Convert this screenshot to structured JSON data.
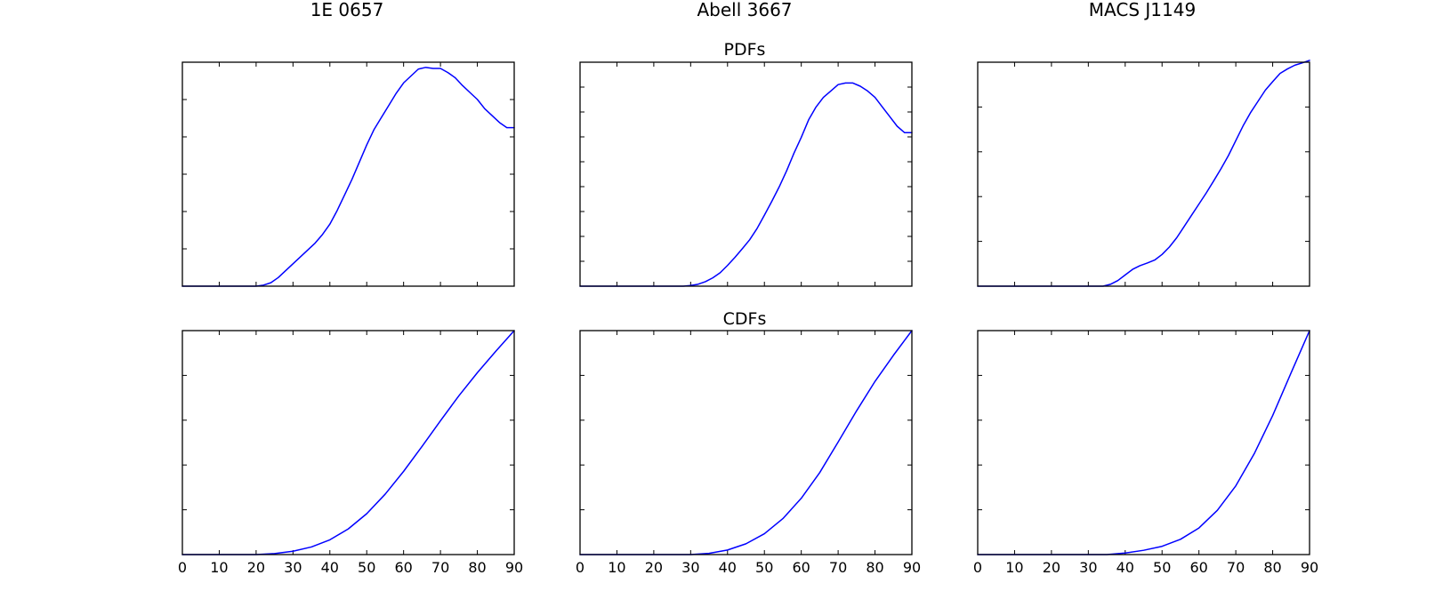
{
  "figure": {
    "column_titles": [
      "1E 0657",
      "Abell 3667",
      "MACS J1149"
    ],
    "row_titles": [
      "PDFs",
      "CDFs"
    ],
    "line_color": "#0000ff"
  },
  "chart_data": [
    {
      "type": "line",
      "row": "PDFs",
      "column": "1E 0657",
      "x": [
        0,
        20,
        22,
        24,
        26,
        28,
        30,
        32,
        34,
        36,
        38,
        40,
        42,
        44,
        46,
        48,
        50,
        52,
        54,
        56,
        58,
        60,
        62,
        64,
        66,
        68,
        70,
        72,
        74,
        76,
        78,
        80,
        82,
        84,
        86,
        88,
        90
      ],
      "values": [
        0,
        0,
        0.003,
        0.01,
        0.025,
        0.045,
        0.065,
        0.085,
        0.105,
        0.125,
        0.15,
        0.18,
        0.22,
        0.265,
        0.31,
        0.36,
        0.41,
        0.455,
        0.49,
        0.525,
        0.56,
        0.59,
        0.61,
        0.63,
        0.635,
        0.632,
        0.632,
        0.62,
        0.605,
        0.582,
        0.562,
        0.542,
        0.515,
        0.495,
        0.475,
        0.46,
        0.46
      ],
      "xlim": [
        0,
        90
      ],
      "ylim": [
        0,
        0.65
      ],
      "xticks": [
        0,
        10,
        20,
        30,
        40,
        50,
        60,
        70,
        80,
        90
      ],
      "yticks": 6,
      "show_xtick_labels": false
    },
    {
      "type": "line",
      "row": "PDFs",
      "column": "Abell 3667",
      "x": [
        0,
        28,
        30,
        32,
        34,
        36,
        38,
        40,
        42,
        44,
        46,
        48,
        50,
        52,
        54,
        56,
        58,
        60,
        62,
        64,
        66,
        68,
        70,
        72,
        74,
        76,
        78,
        80,
        82,
        84,
        86,
        88,
        90
      ],
      "values": [
        0,
        0,
        0.002,
        0.006,
        0.014,
        0.026,
        0.042,
        0.065,
        0.09,
        0.117,
        0.145,
        0.18,
        0.222,
        0.265,
        0.31,
        0.36,
        0.415,
        0.465,
        0.52,
        0.56,
        0.59,
        0.61,
        0.63,
        0.635,
        0.635,
        0.625,
        0.61,
        0.59,
        0.56,
        0.53,
        0.5,
        0.48,
        0.48
      ],
      "xlim": [
        0,
        90
      ],
      "ylim": [
        0,
        0.7
      ],
      "xticks": [
        0,
        10,
        20,
        30,
        40,
        50,
        60,
        70,
        80,
        90
      ],
      "yticks": 9,
      "show_xtick_labels": false
    },
    {
      "type": "line",
      "row": "PDFs",
      "column": "MACS J1149",
      "x": [
        0,
        34,
        36,
        38,
        40,
        42,
        44,
        46,
        48,
        50,
        52,
        54,
        56,
        58,
        60,
        62,
        64,
        66,
        68,
        70,
        72,
        74,
        76,
        78,
        80,
        82,
        84,
        86,
        88,
        90
      ],
      "values": [
        0,
        0,
        0.005,
        0.015,
        0.03,
        0.045,
        0.055,
        0.062,
        0.07,
        0.085,
        0.105,
        0.13,
        0.16,
        0.19,
        0.22,
        0.25,
        0.282,
        0.315,
        0.35,
        0.39,
        0.43,
        0.465,
        0.495,
        0.525,
        0.548,
        0.57,
        0.582,
        0.592,
        0.598,
        0.605
      ],
      "xlim": [
        0,
        90
      ],
      "ylim": [
        0,
        0.6
      ],
      "xticks": [
        0,
        10,
        20,
        30,
        40,
        50,
        60,
        70,
        80,
        90
      ],
      "yticks": 5,
      "show_xtick_labels": false
    },
    {
      "type": "line",
      "row": "CDFs",
      "column": "1E 0657",
      "x": [
        0,
        20,
        25,
        30,
        35,
        40,
        45,
        50,
        55,
        60,
        65,
        70,
        75,
        80,
        85,
        90
      ],
      "values": [
        0,
        0,
        0.004,
        0.014,
        0.032,
        0.062,
        0.108,
        0.172,
        0.254,
        0.35,
        0.455,
        0.563,
        0.668,
        0.765,
        0.855,
        0.942
      ],
      "xlim": [
        0,
        90
      ],
      "ylim": [
        0,
        0.942
      ],
      "xticks": [
        0,
        10,
        20,
        30,
        40,
        50,
        60,
        70,
        80,
        90
      ],
      "yticks": 5,
      "show_xtick_labels": true
    },
    {
      "type": "line",
      "row": "CDFs",
      "column": "Abell 3667",
      "x": [
        0,
        30,
        35,
        40,
        45,
        50,
        55,
        60,
        65,
        70,
        75,
        80,
        85,
        90
      ],
      "values": [
        0,
        0,
        0.005,
        0.019,
        0.045,
        0.087,
        0.15,
        0.235,
        0.342,
        0.47,
        0.6,
        0.723,
        0.832,
        0.935
      ],
      "xlim": [
        0,
        90
      ],
      "ylim": [
        0,
        0.935
      ],
      "xticks": [
        0,
        10,
        20,
        30,
        40,
        50,
        60,
        70,
        80,
        90
      ],
      "yticks": 5,
      "show_xtick_labels": true
    },
    {
      "type": "line",
      "row": "CDFs",
      "column": "MACS J1149",
      "x": [
        0,
        35,
        40,
        45,
        50,
        55,
        60,
        65,
        70,
        75,
        80,
        85,
        90
      ],
      "values": [
        0,
        0,
        0.005,
        0.014,
        0.027,
        0.05,
        0.087,
        0.145,
        0.225,
        0.33,
        0.455,
        0.595,
        0.733
      ],
      "xlim": [
        0,
        90
      ],
      "ylim": [
        0,
        0.733
      ],
      "xticks": [
        0,
        10,
        20,
        30,
        40,
        50,
        60,
        70,
        80,
        90
      ],
      "yticks": 5,
      "show_xtick_labels": true
    }
  ]
}
